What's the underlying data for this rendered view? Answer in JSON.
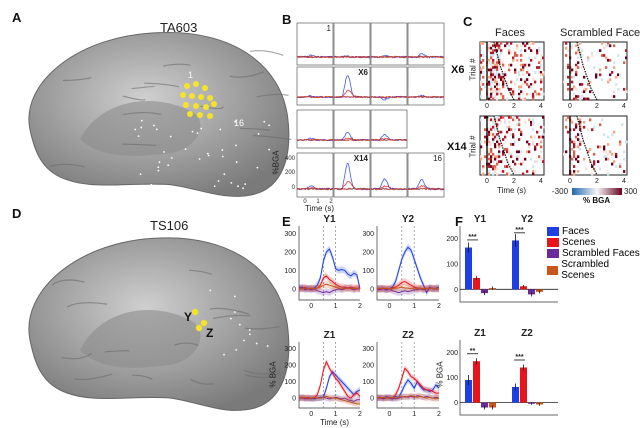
{
  "panels": {
    "A": "A",
    "B": "B",
    "C": "C",
    "D": "D",
    "E": "E",
    "F": "F"
  },
  "brain_a": {
    "subject": "TA603",
    "electrode_first": "1",
    "electrode_last": "16"
  },
  "brain_d": {
    "subject": "TS106",
    "electrode_y": "Y",
    "electrode_z": "Z"
  },
  "panel_b": {
    "ylabel": "%BGA",
    "xlabel": "Time (s)",
    "yticks": [
      "400",
      "200",
      "0"
    ],
    "xticks": [
      "0",
      "1",
      "2"
    ],
    "cells": [
      {
        "label": "1",
        "faces_peak": 20
      },
      {
        "label": "",
        "faces_peak": 10
      },
      {
        "label": "",
        "faces_peak": 20
      },
      {
        "label": "",
        "faces_peak": 40
      },
      {
        "label": "",
        "faces_peak": 20
      },
      {
        "label": "X6",
        "faces_peak": 320
      },
      {
        "label": "",
        "faces_peak": -40
      },
      {
        "label": "",
        "faces_peak": 20
      },
      {
        "label": "",
        "faces_peak": 20
      },
      {
        "label": "",
        "faces_peak": 110
      },
      {
        "label": "",
        "faces_peak": 80
      },
      null,
      {
        "label": "",
        "faces_peak": 40
      },
      {
        "label": "X14",
        "faces_peak": 300
      },
      {
        "label": "",
        "faces_peak": 120
      },
      {
        "label": "16",
        "faces_peak": 120
      }
    ]
  },
  "panel_c": {
    "col_titles": [
      "Faces",
      "Scrambled Faces"
    ],
    "row_labels": [
      "X6",
      "X14"
    ],
    "ylabel": "Trial #",
    "xlabel": "Time (s)",
    "xticks": [
      "0",
      "2",
      "4"
    ],
    "colorbar": {
      "min": "-300",
      "max": "300",
      "label": "% BGA",
      "colors": [
        "#2166ac",
        "#f7f7f7",
        "#67001f"
      ]
    }
  },
  "chart_data": [
    {
      "type": "line",
      "title": "Y1",
      "xlabel": "",
      "ylabel": "",
      "xlim": [
        -0.5,
        2
      ],
      "ylim": [
        -60,
        340
      ],
      "xticks": [
        "0",
        "1",
        "2"
      ],
      "yticks": [
        "0",
        "100",
        "200",
        "300"
      ],
      "dashed_x": [
        0.5,
        1
      ],
      "x": [
        -0.5,
        -0.375,
        -0.25,
        -0.125,
        0,
        0.125,
        0.25,
        0.375,
        0.5,
        0.625,
        0.75,
        0.875,
        1,
        1.125,
        1.25,
        1.375,
        1.5,
        1.625,
        1.75,
        1.875,
        2
      ],
      "series": [
        {
          "name": "Faces",
          "values": [
            5,
            10,
            0,
            5,
            0,
            5,
            20,
            60,
            150,
            200,
            215,
            170,
            110,
            100,
            105,
            100,
            80,
            70,
            85,
            75,
            0
          ]
        },
        {
          "name": "Scenes",
          "values": [
            5,
            0,
            10,
            0,
            5,
            0,
            5,
            20,
            60,
            70,
            50,
            40,
            25,
            15,
            10,
            10,
            5,
            10,
            5,
            5,
            5
          ]
        },
        {
          "name": "Scrambled Faces",
          "values": [
            0,
            5,
            -5,
            0,
            -5,
            0,
            -10,
            -15,
            -20,
            -15,
            -20,
            -10,
            -5,
            0,
            -5,
            0,
            5,
            0,
            -5,
            0,
            0
          ]
        },
        {
          "name": "Scrambled Scenes",
          "values": [
            0,
            0,
            5,
            0,
            5,
            0,
            5,
            10,
            20,
            25,
            20,
            15,
            10,
            5,
            0,
            5,
            0,
            5,
            0,
            5,
            0
          ]
        }
      ]
    },
    {
      "type": "line",
      "title": "Y2",
      "xlim": [
        -0.5,
        2
      ],
      "ylim": [
        -60,
        340
      ],
      "xticks": [
        "0",
        "1",
        "2"
      ],
      "yticks": [
        "0",
        "100",
        "200",
        "300"
      ],
      "dashed_x": [
        0.5,
        1
      ],
      "x": [
        -0.5,
        -0.375,
        -0.25,
        -0.125,
        0,
        0.125,
        0.25,
        0.375,
        0.5,
        0.625,
        0.75,
        0.875,
        1,
        1.125,
        1.25,
        1.375,
        1.5,
        1.625,
        1.75,
        1.875,
        2
      ],
      "series": [
        {
          "name": "Faces",
          "values": [
            0,
            5,
            0,
            -5,
            0,
            10,
            40,
            100,
            160,
            200,
            225,
            210,
            160,
            110,
            60,
            20,
            -20,
            10,
            0,
            5,
            10
          ]
        },
        {
          "name": "Scenes",
          "values": [
            0,
            0,
            5,
            0,
            0,
            5,
            10,
            20,
            35,
            40,
            30,
            20,
            10,
            5,
            5,
            0,
            5,
            0,
            5,
            0,
            0
          ]
        },
        {
          "name": "Scrambled Faces",
          "values": [
            0,
            -5,
            0,
            -5,
            0,
            -10,
            -15,
            -20,
            -15,
            -10,
            -15,
            -10,
            -5,
            -5,
            0,
            -5,
            0,
            5,
            0,
            0,
            0
          ]
        },
        {
          "name": "Scrambled Scenes",
          "values": [
            0,
            5,
            0,
            5,
            0,
            0,
            5,
            5,
            10,
            5,
            5,
            0,
            5,
            0,
            5,
            0,
            0,
            5,
            0,
            5,
            0
          ]
        }
      ]
    },
    {
      "type": "line",
      "title": "Z1",
      "xlabel": "Time (s)",
      "ylabel": "% BGA",
      "xlim": [
        -0.5,
        2
      ],
      "ylim": [
        -60,
        340
      ],
      "xticks": [
        "0",
        "1",
        "2"
      ],
      "yticks": [
        "0",
        "100",
        "200",
        "300"
      ],
      "dashed_x": [
        0.5,
        1
      ],
      "x": [
        -0.5,
        -0.375,
        -0.25,
        -0.125,
        0,
        0.125,
        0.25,
        0.375,
        0.5,
        0.625,
        0.75,
        0.875,
        1,
        1.125,
        1.25,
        1.375,
        1.5,
        1.625,
        1.75,
        1.875,
        2
      ],
      "series": [
        {
          "name": "Faces",
          "values": [
            0,
            5,
            0,
            -5,
            0,
            -5,
            0,
            0,
            5,
            60,
            130,
            160,
            140,
            120,
            100,
            80,
            60,
            40,
            20,
            40,
            50
          ]
        },
        {
          "name": "Scenes",
          "values": [
            0,
            5,
            0,
            5,
            0,
            0,
            20,
            80,
            170,
            220,
            180,
            150,
            120,
            100,
            70,
            40,
            10,
            0,
            20,
            30,
            10
          ]
        },
        {
          "name": "Scrambled Faces",
          "values": [
            0,
            0,
            -5,
            0,
            -5,
            0,
            0,
            5,
            5,
            0,
            -5,
            0,
            5,
            0,
            -5,
            0,
            -10,
            -15,
            -20,
            -10,
            -10
          ]
        },
        {
          "name": "Scrambled Scenes",
          "values": [
            5,
            0,
            5,
            0,
            0,
            5,
            0,
            0,
            5,
            10,
            5,
            0,
            0,
            -5,
            -10,
            -15,
            -20,
            -25,
            -30,
            -35,
            -35
          ]
        }
      ]
    },
    {
      "type": "line",
      "title": "Z2",
      "xlim": [
        -0.5,
        2
      ],
      "ylim": [
        -60,
        340
      ],
      "xticks": [
        "0",
        "1",
        "2"
      ],
      "yticks": [
        "0",
        "100",
        "200",
        "300"
      ],
      "dashed_x": [
        0.5,
        1
      ],
      "x": [
        -0.5,
        -0.375,
        -0.25,
        -0.125,
        0,
        0.125,
        0.25,
        0.375,
        0.5,
        0.625,
        0.75,
        0.875,
        1,
        1.125,
        1.25,
        1.375,
        1.5,
        1.625,
        1.75,
        1.875,
        2
      ],
      "series": [
        {
          "name": "Faces",
          "values": [
            0,
            5,
            0,
            10,
            0,
            -5,
            10,
            5,
            40,
            80,
            110,
            90,
            60,
            100,
            70,
            50,
            50,
            40,
            50,
            80,
            60
          ]
        },
        {
          "name": "Scenes",
          "values": [
            0,
            5,
            0,
            0,
            5,
            0,
            20,
            60,
            120,
            180,
            160,
            130,
            120,
            100,
            80,
            60,
            50,
            50,
            40,
            30,
            30
          ]
        },
        {
          "name": "Scrambled Faces",
          "values": [
            0,
            0,
            -5,
            0,
            5,
            0,
            -5,
            0,
            5,
            10,
            5,
            10,
            5,
            15,
            10,
            5,
            10,
            5,
            0,
            5,
            0
          ]
        },
        {
          "name": "Scrambled Scenes",
          "values": [
            5,
            0,
            5,
            0,
            0,
            5,
            0,
            5,
            10,
            5,
            10,
            15,
            10,
            5,
            10,
            5,
            0,
            5,
            0,
            -5,
            0
          ]
        }
      ]
    },
    {
      "type": "bar",
      "ylabel": "",
      "ylim": [
        -50,
        250
      ],
      "yticks": [
        "0",
        "100",
        "200"
      ],
      "categories": [
        "Y1",
        "Y2"
      ],
      "significance": [
        "***",
        "***"
      ],
      "series": [
        {
          "name": "Faces",
          "values": [
            165,
            193
          ],
          "errors": [
            20,
            25
          ]
        },
        {
          "name": "Scenes",
          "values": [
            45,
            12
          ],
          "errors": [
            8,
            5
          ]
        },
        {
          "name": "Scrambled Faces",
          "values": [
            -15,
            -20
          ],
          "errors": [
            8,
            8
          ]
        },
        {
          "name": "Scrambled Scenes",
          "values": [
            5,
            -10
          ],
          "errors": [
            6,
            6
          ]
        }
      ],
      "legend": "top-right"
    },
    {
      "type": "bar",
      "ylabel": "% BGA",
      "ylim": [
        -50,
        250
      ],
      "yticks": [
        "0",
        "100",
        "200"
      ],
      "categories": [
        "Z1",
        "Z2"
      ],
      "significance": [
        "**",
        "***"
      ],
      "series": [
        {
          "name": "Faces",
          "values": [
            90,
            62
          ],
          "errors": [
            20,
            14
          ]
        },
        {
          "name": "Scenes",
          "values": [
            165,
            140
          ],
          "errors": [
            12,
            12
          ]
        },
        {
          "name": "Scrambled Faces",
          "values": [
            -20,
            -5
          ],
          "errors": [
            8,
            4
          ]
        },
        {
          "name": "Scrambled Scenes",
          "values": [
            -20,
            -8
          ],
          "errors": [
            8,
            5
          ]
        }
      ]
    }
  ],
  "colors": {
    "Faces": "#1f3fe6",
    "Scenes": "#e8141b",
    "Scrambled Faces": "#6a2a9e",
    "Scrambled Scenes": "#c8561a"
  }
}
